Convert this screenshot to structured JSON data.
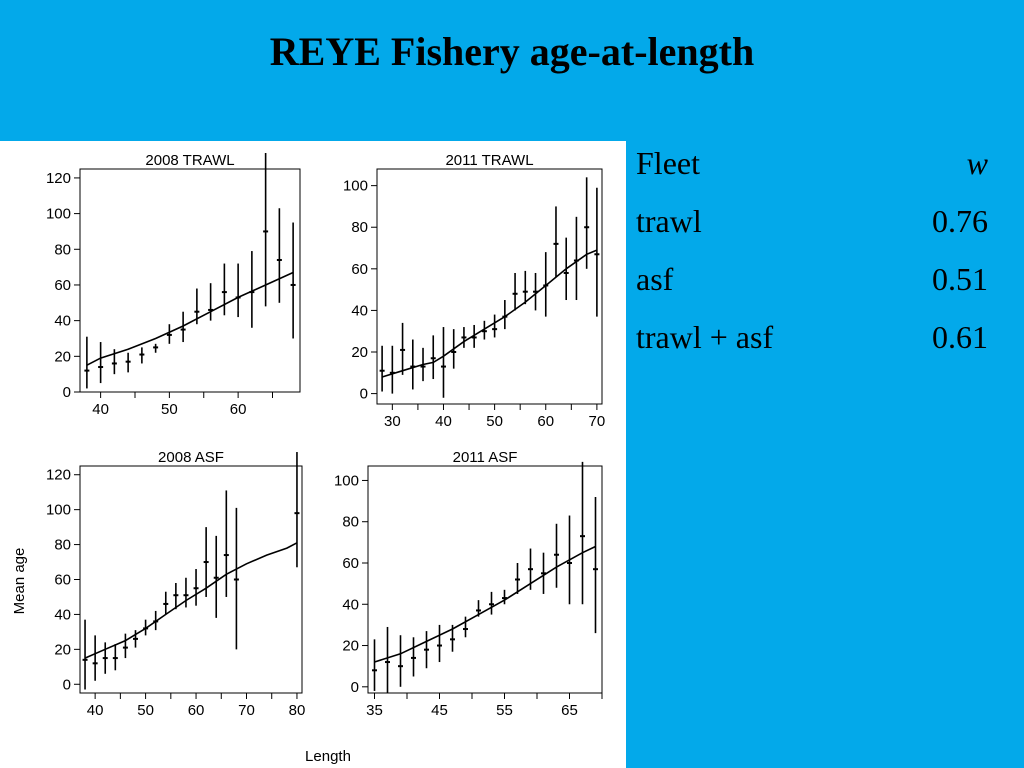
{
  "slide": {
    "title": "REYE Fishery age-at-length"
  },
  "table": {
    "header": {
      "fleet": "Fleet",
      "w": "w"
    },
    "rows": [
      {
        "fleet": "trawl",
        "w": "0.76"
      },
      {
        "fleet": "asf",
        "w": "0.51"
      },
      {
        "fleet": "trawl + asf",
        "w": "0.61"
      }
    ]
  },
  "figure": {
    "ylabel": "Mean age",
    "xlabel": "Length"
  },
  "chart_data": [
    {
      "type": "line",
      "title": "2008 TRAWL",
      "xlabel": "Length",
      "ylabel": "Mean age",
      "xlim": [
        37,
        69
      ],
      "ylim": [
        0,
        125
      ],
      "xticks": [
        40,
        50,
        60
      ],
      "yticks": [
        0,
        20,
        40,
        60,
        80,
        100,
        120
      ],
      "series": [
        {
          "kind": "fit",
          "x": [
            38,
            40,
            44,
            48,
            52,
            56,
            60,
            64,
            68
          ],
          "y": [
            15,
            19,
            24,
            30,
            37,
            45,
            53,
            60,
            67
          ]
        },
        {
          "kind": "observed",
          "x": [
            38,
            40,
            42,
            44,
            46,
            48,
            50,
            52,
            54,
            56,
            58,
            60,
            62,
            64,
            66,
            68
          ],
          "y": [
            12,
            14,
            16,
            17,
            21,
            25,
            32,
            35,
            45,
            46,
            56,
            53,
            56,
            90,
            74,
            60
          ],
          "lo": [
            2,
            5,
            10,
            11,
            16,
            22,
            27,
            28,
            38,
            40,
            43,
            42,
            36,
            48,
            50,
            30
          ],
          "hi": [
            31,
            28,
            24,
            22,
            25,
            27,
            38,
            45,
            58,
            61,
            72,
            72,
            79,
            134,
            103,
            95
          ]
        }
      ]
    },
    {
      "type": "line",
      "title": "2011 TRAWL",
      "xlabel": "Length",
      "ylabel": "Mean age",
      "xlim": [
        27,
        71
      ],
      "ylim": [
        -5,
        108
      ],
      "xticks": [
        30,
        40,
        50,
        60,
        70
      ],
      "yticks": [
        0,
        20,
        40,
        60,
        80,
        100
      ],
      "series": [
        {
          "kind": "fit",
          "x": [
            28,
            32,
            36,
            38,
            40,
            44,
            48,
            52,
            56,
            60,
            64,
            68,
            70
          ],
          "y": [
            8,
            11,
            14,
            15,
            18,
            25,
            31,
            37,
            44,
            52,
            60,
            67,
            69
          ]
        },
        {
          "kind": "observed",
          "x": [
            28,
            30,
            32,
            34,
            36,
            38,
            40,
            42,
            44,
            46,
            48,
            50,
            52,
            54,
            56,
            58,
            60,
            62,
            64,
            66,
            68,
            70
          ],
          "y": [
            11,
            10,
            21,
            13,
            13,
            17,
            13,
            20,
            27,
            27,
            30,
            31,
            37,
            48,
            49,
            49,
            52,
            72,
            58,
            64,
            80,
            67
          ],
          "lo": [
            1,
            0,
            9,
            2,
            6,
            7,
            -2,
            12,
            22,
            22,
            26,
            27,
            31,
            40,
            43,
            40,
            37,
            56,
            45,
            45,
            60,
            37
          ],
          "hi": [
            23,
            23,
            34,
            26,
            22,
            28,
            32,
            31,
            32,
            33,
            35,
            38,
            45,
            58,
            59,
            58,
            68,
            90,
            75,
            85,
            104,
            99
          ]
        }
      ]
    },
    {
      "type": "line",
      "title": "2008 ASF",
      "xlabel": "Length",
      "ylabel": "Mean age",
      "xlim": [
        37,
        81
      ],
      "ylim": [
        -5,
        125
      ],
      "xticks": [
        40,
        50,
        60,
        70,
        80
      ],
      "yticks": [
        0,
        20,
        40,
        60,
        80,
        100,
        120
      ],
      "series": [
        {
          "kind": "fit",
          "x": [
            38,
            42,
            46,
            50,
            54,
            58,
            62,
            66,
            70,
            74,
            78,
            80
          ],
          "y": [
            15,
            20,
            25,
            32,
            40,
            48,
            55,
            63,
            69,
            74,
            78,
            81
          ]
        },
        {
          "kind": "observed",
          "x": [
            38,
            40,
            42,
            44,
            46,
            48,
            50,
            52,
            54,
            56,
            58,
            60,
            62,
            64,
            66,
            68,
            80
          ],
          "y": [
            14,
            12,
            15,
            15,
            21,
            26,
            32,
            36,
            46,
            51,
            51,
            55,
            70,
            61,
            74,
            60,
            98
          ],
          "lo": [
            -3,
            2,
            6,
            8,
            15,
            21,
            28,
            31,
            40,
            43,
            44,
            45,
            50,
            38,
            50,
            20,
            67
          ],
          "hi": [
            37,
            28,
            24,
            23,
            29,
            31,
            37,
            42,
            53,
            58,
            61,
            66,
            90,
            85,
            111,
            101,
            133
          ]
        }
      ]
    },
    {
      "type": "line",
      "title": "2011 ASF",
      "xlabel": "Length",
      "ylabel": "Mean age",
      "xlim": [
        34,
        70
      ],
      "ylim": [
        -3,
        107
      ],
      "xticks": [
        35,
        45,
        55,
        65
      ],
      "yticks": [
        0,
        20,
        40,
        60,
        80,
        100
      ],
      "series": [
        {
          "kind": "fit",
          "x": [
            35,
            39,
            43,
            47,
            51,
            55,
            59,
            63,
            67,
            69
          ],
          "y": [
            12,
            16,
            22,
            28,
            35,
            42,
            50,
            58,
            65,
            68
          ]
        },
        {
          "kind": "observed",
          "x": [
            35,
            37,
            39,
            41,
            43,
            45,
            47,
            49,
            51,
            53,
            55,
            57,
            59,
            61,
            63,
            65,
            67,
            69
          ],
          "y": [
            8,
            12,
            10,
            14,
            18,
            20,
            23,
            28,
            37,
            40,
            43,
            52,
            57,
            55,
            64,
            60,
            73,
            57
          ],
          "lo": [
            -2,
            -3,
            0,
            5,
            9,
            12,
            17,
            24,
            34,
            35,
            40,
            45,
            47,
            45,
            48,
            40,
            40,
            26
          ],
          "hi": [
            23,
            29,
            25,
            24,
            27,
            30,
            30,
            34,
            42,
            46,
            47,
            60,
            67,
            65,
            79,
            83,
            109,
            92
          ]
        }
      ]
    }
  ]
}
